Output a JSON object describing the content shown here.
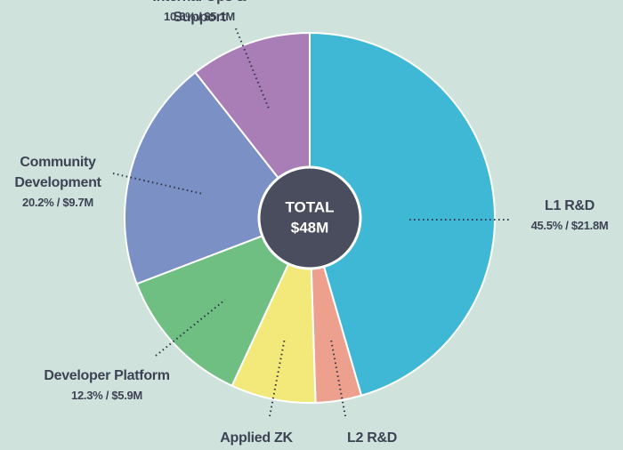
{
  "chart_data": {
    "type": "pie",
    "categories": [
      "L1 R&D",
      "L2 R&D",
      "Applied ZK",
      "Developer Platform",
      "Community Development",
      "Internal Ops & Support"
    ],
    "values": [
      45.5,
      4.0,
      7.4,
      12.3,
      20.2,
      10.6
    ],
    "value_labels": [
      "45.5% / $21.8M",
      null,
      null,
      "12.3% / $5.9M",
      "20.2% / $9.7M",
      "10.6% / $5.1M"
    ],
    "colors": [
      "#3fb8d6",
      "#eea08e",
      "#f3e87a",
      "#6fbf83",
      "#7b90c4",
      "#a97db5"
    ],
    "center_label": [
      "TOTAL",
      "$48M"
    ]
  }
}
